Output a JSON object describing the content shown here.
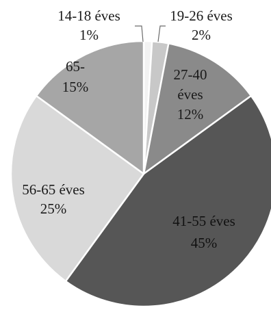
{
  "chart_data": {
    "type": "pie",
    "title": "",
    "slices": [
      {
        "category": "14-18 éves",
        "value": 1,
        "label_line1": "14-18 éves",
        "label_line2": "1%",
        "color": "#f2f2f2",
        "text_color": "#1a1a1a"
      },
      {
        "category": "19-26 éves",
        "value": 2,
        "label_line1": "19-26 éves",
        "label_line2": "2%",
        "color": "#c8c8c8",
        "text_color": "#1a1a1a"
      },
      {
        "category": "27-40 éves",
        "value": 12,
        "label_lines": [
          "27-40",
          "éves",
          "12%"
        ],
        "color": "#8a8a8a",
        "text_color": "#1a1a1a"
      },
      {
        "category": "41-55 éves",
        "value": 45,
        "label_lines": [
          "41-55 éves",
          "45%"
        ],
        "color": "#565656",
        "text_color": "#111111"
      },
      {
        "category": "56-65 éves",
        "value": 25,
        "label_lines": [
          "56-65 éves",
          "25%"
        ],
        "color": "#d9d9d9",
        "text_color": "#1a1a1a"
      },
      {
        "category": "65-",
        "value": 15,
        "label_lines": [
          "65-",
          "15%"
        ],
        "color": "#a6a6a6",
        "text_color": "#1a1a1a"
      }
    ],
    "start_angle_deg": 0,
    "direction": "clockwise",
    "legend": "none",
    "border_color": "#ffffff"
  }
}
